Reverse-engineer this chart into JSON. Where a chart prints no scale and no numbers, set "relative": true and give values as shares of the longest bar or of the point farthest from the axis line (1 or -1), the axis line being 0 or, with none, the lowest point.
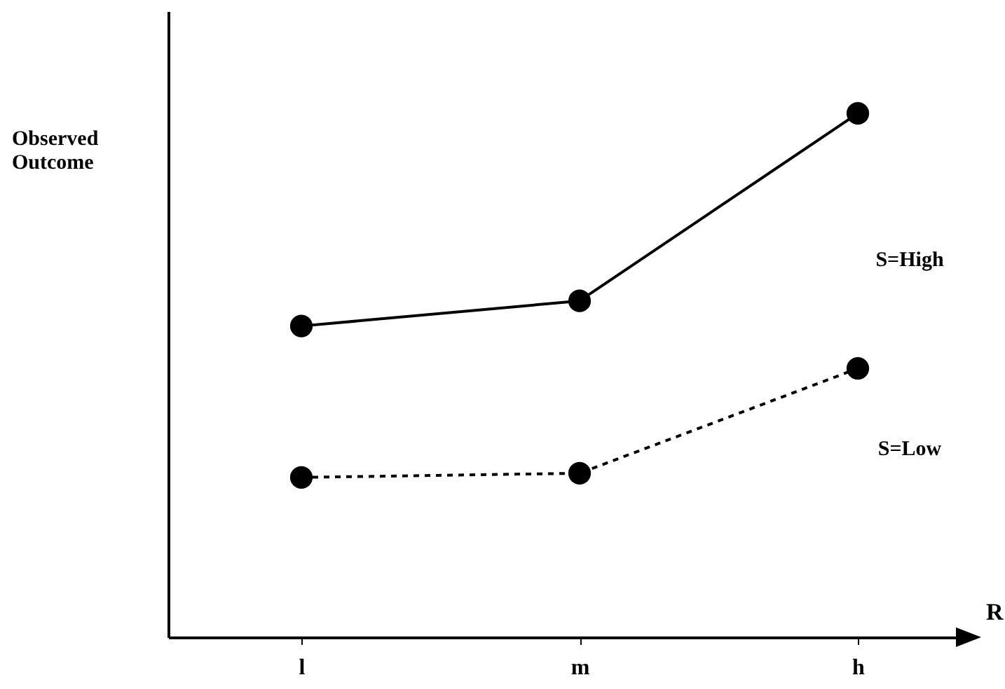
{
  "chart_data": {
    "type": "line",
    "relative": true,
    "xlabel": "R",
    "ylabel": "Observed\nOutcome",
    "categories": [
      "l",
      "m",
      "h"
    ],
    "series": [
      {
        "name": "S=High",
        "color": "#000000",
        "line_style": "solid",
        "values": [
          0.594,
          0.642,
          1
        ]
      },
      {
        "name": "S=Low",
        "color": "#000000",
        "line_style": "dashed",
        "values": [
          0.305,
          0.313,
          0.513
        ]
      }
    ],
    "marker": "circle",
    "grid": false,
    "legend": false
  }
}
